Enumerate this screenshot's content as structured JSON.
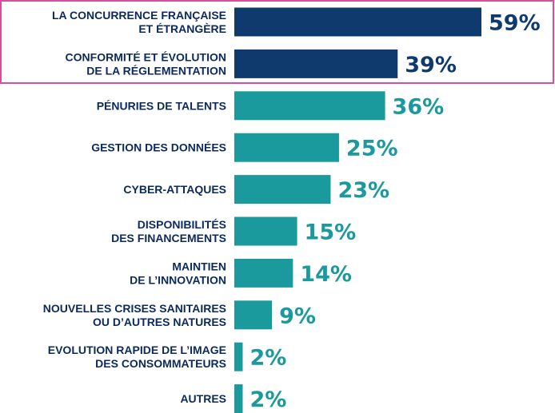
{
  "chart_data": {
    "type": "bar",
    "orientation": "horizontal",
    "categories": [
      [
        "LA CONCURRENCE FRANÇAISE",
        "ET ÉTRANGÈRE"
      ],
      [
        "CONFORMITÉ ET ÉVOLUTION",
        "DE LA RÉGLEMENTATION"
      ],
      [
        "PÉNURIES DE TALENTS"
      ],
      [
        "GESTION DES DONNÉES"
      ],
      [
        "CYBER-ATTAQUES"
      ],
      [
        "DISPONIBILITÉS",
        "DES FINANCEMENTS"
      ],
      [
        "MAINTIEN",
        "DE L’INNOVATION"
      ],
      [
        "NOUVELLES CRISES SANITAIRES",
        "OU D’AUTRES NATURES"
      ],
      [
        "EVOLUTION RAPIDE DE L’IMAGE",
        "DES CONSOMMATEURS"
      ],
      [
        "AUTRES"
      ]
    ],
    "values": [
      59,
      39,
      36,
      25,
      23,
      15,
      14,
      9,
      2,
      2
    ],
    "value_labels": [
      "59%",
      "39%",
      "36%",
      "25%",
      "23%",
      "15%",
      "14%",
      "9%",
      "2%",
      "2%"
    ],
    "highlighted": [
      true,
      true,
      false,
      false,
      false,
      false,
      false,
      false,
      false,
      false
    ],
    "xlim": [
      0,
      59
    ],
    "grid": false,
    "colors": {
      "highlight": "#0f3a6e",
      "default": "#1a9a9c",
      "highlight_label": "#0f3a6e",
      "default_label": "#1a9a9c",
      "category_text": "#0b2a5b",
      "frame": "#d4509a"
    }
  }
}
